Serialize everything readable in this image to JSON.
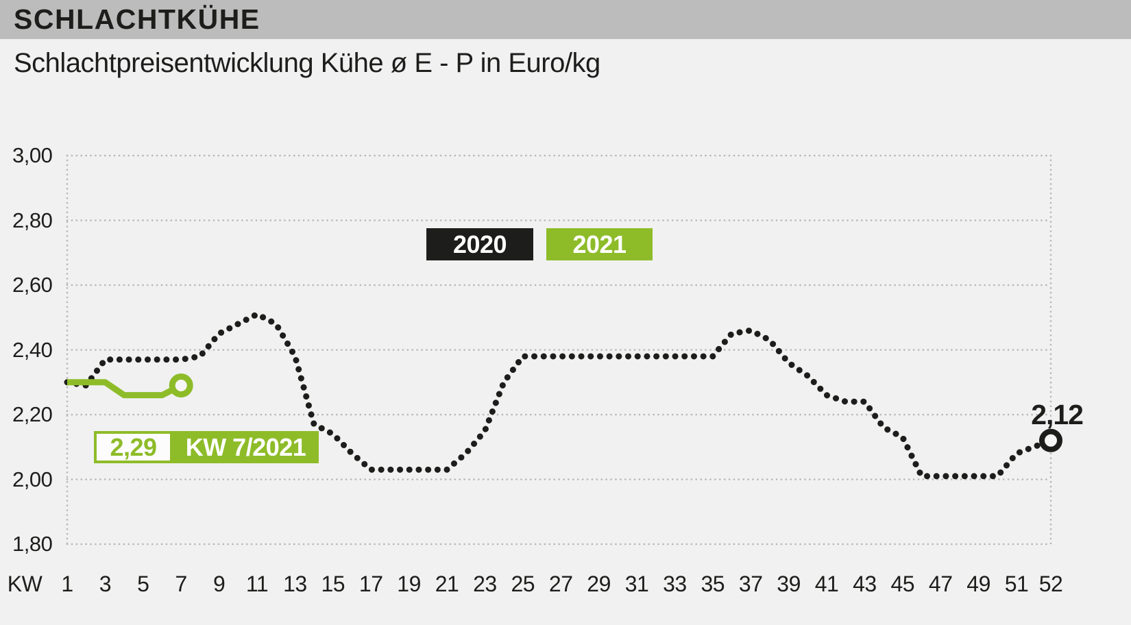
{
  "header": {
    "title": "SCHLACHTKÜHE"
  },
  "subtitle": "Schlachtpreisentwicklung Kühe ø E - P in Euro/kg",
  "annotations": {
    "end_value_2020": "2,12",
    "current_value_2021": "2,29",
    "current_week_2021": "KW 7/2021"
  },
  "colors": {
    "accent_green": "#8ebc29",
    "series_black": "#1d1d1b",
    "header_bar": "#bcbcbc",
    "background": "#f1f1f2",
    "grid_dots": "#b7b7b7"
  },
  "chart_data": {
    "type": "line",
    "title": "Schlachtpreisentwicklung Kühe ø E - P in Euro/kg",
    "x_axis_label": "KW",
    "unit": "Euro/kg",
    "ylim": [
      1.8,
      3.0
    ],
    "grid": "dotted",
    "legend_position": "top-center-inside",
    "x_tick_labels": [
      "KW",
      "1",
      "3",
      "5",
      "7",
      "9",
      "11",
      "13",
      "15",
      "17",
      "19",
      "21",
      "23",
      "25",
      "27",
      "29",
      "31",
      "33",
      "35",
      "37",
      "39",
      "41",
      "43",
      "45",
      "47",
      "49",
      "51",
      "52"
    ],
    "y_tick_labels": [
      "3,00",
      "2,80",
      "2,60",
      "2,40",
      "2,20",
      "2,00",
      "1,80"
    ],
    "y_tick_values": [
      3.0,
      2.8,
      2.6,
      2.4,
      2.2,
      2.0,
      1.8
    ],
    "series": [
      {
        "name": "2020",
        "color": "#1d1d1b",
        "line_style": "dotted",
        "end_marker": "open-circle",
        "end_annotation": "2,12",
        "weeks_start": 1,
        "values": [
          2.3,
          2.29,
          2.37,
          2.37,
          2.37,
          2.37,
          2.37,
          2.38,
          2.45,
          2.48,
          2.51,
          2.48,
          2.38,
          2.17,
          2.14,
          2.08,
          2.03,
          2.03,
          2.03,
          2.03,
          2.03,
          2.08,
          2.15,
          2.3,
          2.38,
          2.38,
          2.38,
          2.38,
          2.38,
          2.38,
          2.38,
          2.38,
          2.38,
          2.38,
          2.38,
          2.45,
          2.46,
          2.43,
          2.36,
          2.32,
          2.26,
          2.24,
          2.24,
          2.16,
          2.13,
          2.01,
          2.01,
          2.01,
          2.01,
          2.01,
          2.08,
          2.12
        ]
      },
      {
        "name": "2021",
        "color": "#8ebc29",
        "line_style": "solid",
        "end_marker": "open-circle",
        "end_annotation": "2,29 (KW 7/2021)",
        "weeks_start": 1,
        "values": [
          2.3,
          2.3,
          2.3,
          2.26,
          2.26,
          2.26,
          2.29
        ]
      }
    ]
  }
}
